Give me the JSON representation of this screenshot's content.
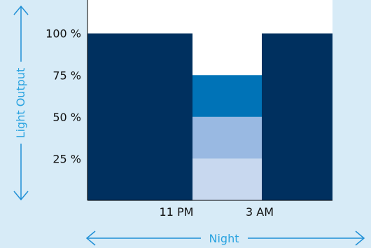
{
  "chart_data": {
    "type": "bar",
    "title": "",
    "ylabel": "Light Output",
    "xlabel": "Night",
    "yticks": [
      "100 %",
      "75 %",
      "50 %",
      "25 %"
    ],
    "ytick_values": [
      100,
      75,
      50,
      25
    ],
    "xticks": [
      "11 PM",
      "3 AM"
    ],
    "ylim": [
      0,
      120
    ],
    "segments": [
      {
        "period": "before 11 PM",
        "value": 100
      },
      {
        "period": "11 PM – 3 AM",
        "value": 75,
        "levels": [
          25,
          50,
          75
        ]
      },
      {
        "period": "after 3 AM",
        "value": 100
      }
    ],
    "grid": false,
    "legend": "none"
  },
  "colors": {
    "background": "#d7ebf7",
    "plot_background": "#ffffff",
    "full_output": "#00305f",
    "level_75": "#0073b7",
    "level_50": "#99b9e2",
    "level_25": "#c8d8ef",
    "axis_label": "#2aa3e0",
    "arrow": "#1f8fd6"
  },
  "icons": {
    "vertical_arrow": "double-headed-vertical-arrow-icon",
    "horizontal_arrow": "double-headed-horizontal-arrow-icon"
  }
}
